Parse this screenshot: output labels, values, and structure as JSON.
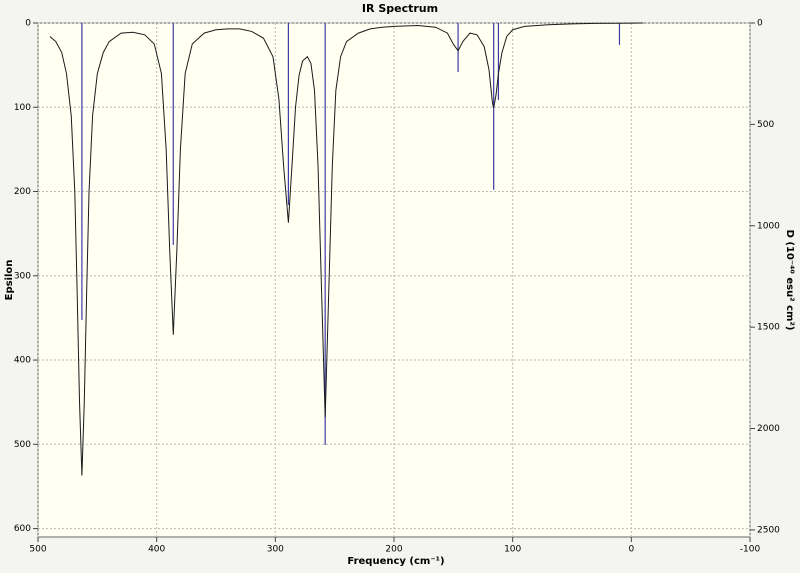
{
  "chart_data": {
    "type": "line",
    "title": "IR Spectrum",
    "xlabel": "Frequency (cm⁻¹)",
    "ylabel": "Epsilon",
    "y2label": "D (10⁻⁴⁰ esu² cm²)",
    "xlim": [
      500,
      -100
    ],
    "xticks": [
      500,
      400,
      300,
      200,
      100,
      0,
      -100
    ],
    "ylim": [
      0,
      610
    ],
    "yticks": [
      0,
      100,
      200,
      300,
      400,
      500,
      600
    ],
    "y2lim": [
      0,
      2535
    ],
    "y2ticks": [
      0,
      500,
      1000,
      1500,
      2000,
      2500
    ],
    "grid": true,
    "series": [
      {
        "color": "#1a1a1a",
        "x": [
          490,
          485,
          480,
          476,
          472,
          469,
          467,
          465,
          463,
          461,
          459,
          457,
          454,
          450,
          445,
          440,
          430,
          420,
          410,
          402,
          396,
          392,
          389,
          386,
          383,
          380,
          376,
          370,
          360,
          350,
          340,
          330,
          320,
          310,
          302,
          297,
          293,
          289,
          286,
          283,
          280,
          277,
          273,
          270,
          267,
          264,
          261,
          258,
          255,
          252,
          249,
          245,
          240,
          230,
          220,
          210,
          200,
          180,
          165,
          155,
          150,
          146,
          142,
          136,
          130,
          124,
          120,
          117,
          116,
          114,
          112,
          109,
          105,
          100,
          90,
          70,
          50,
          30,
          10,
          -10
        ],
        "values": [
          16,
          22,
          35,
          60,
          110,
          200,
          320,
          450,
          537,
          450,
          320,
          200,
          110,
          60,
          35,
          22,
          12,
          11,
          14,
          25,
          60,
          150,
          270,
          370,
          270,
          150,
          60,
          25,
          12,
          8,
          7,
          7,
          10,
          18,
          40,
          90,
          170,
          237,
          170,
          100,
          62,
          45,
          40,
          48,
          80,
          170,
          320,
          468,
          320,
          170,
          80,
          40,
          22,
          12,
          7,
          5,
          4,
          3,
          5,
          12,
          25,
          33,
          22,
          12,
          14,
          28,
          55,
          95,
          101,
          85,
          60,
          35,
          16,
          8,
          4,
          2,
          1,
          0.5,
          0.3,
          0
        ]
      },
      {
        "type": "stem",
        "axis": "y2",
        "color": "#3b3ba6",
        "x": [
          463,
          386,
          289,
          258,
          146,
          116,
          112,
          10
        ],
        "values": [
          1465,
          1095,
          897,
          2081,
          242,
          823,
          380,
          108
        ]
      }
    ]
  }
}
